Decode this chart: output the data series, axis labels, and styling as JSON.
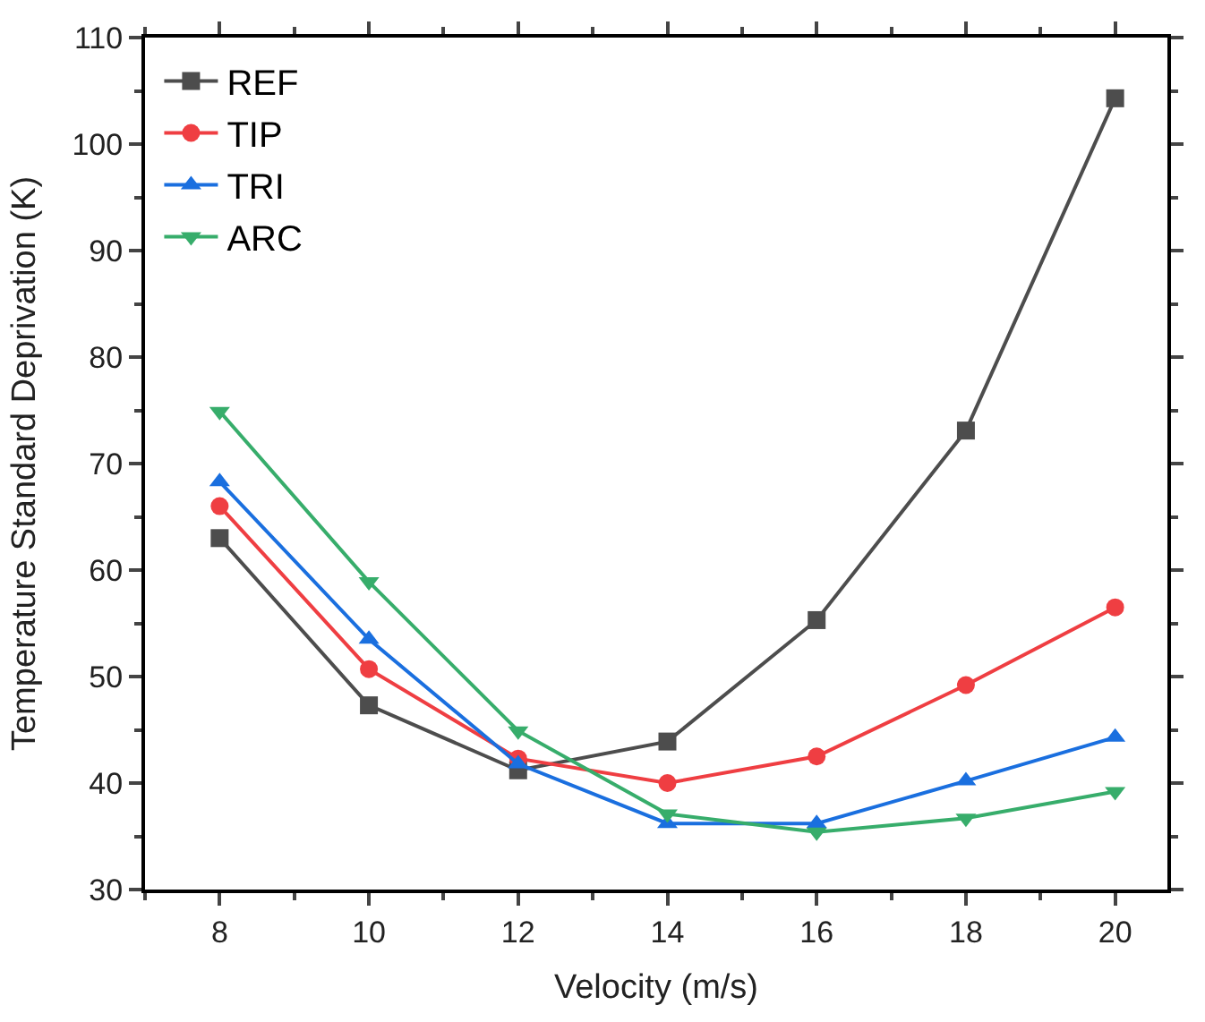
{
  "chart_data": {
    "type": "line",
    "xlabel": "Velocity (m/s)",
    "ylabel": "Temperature Standard Deprivation (K)",
    "x": [
      8,
      10,
      12,
      14,
      16,
      18,
      20
    ],
    "series": [
      {
        "name": "REF",
        "color": "#4d4d4d",
        "marker": "square",
        "values": [
          63.0,
          47.3,
          41.2,
          43.9,
          55.3,
          73.1,
          104.3
        ]
      },
      {
        "name": "TIP",
        "color": "#ef3e42",
        "marker": "circle",
        "values": [
          66.0,
          50.7,
          42.3,
          40.0,
          42.5,
          49.2,
          56.5
        ]
      },
      {
        "name": "TRI",
        "color": "#1a6fdf",
        "marker": "triangle",
        "values": [
          68.3,
          53.5,
          41.8,
          36.2,
          36.2,
          40.2,
          44.3
        ]
      },
      {
        "name": "ARC",
        "color": "#37ad6b",
        "marker": "triangle-down",
        "values": [
          74.9,
          58.9,
          44.9,
          37.1,
          35.4,
          36.7,
          39.2
        ]
      }
    ],
    "xlim": [
      7,
      20.7
    ],
    "xticks": [
      8,
      10,
      12,
      14,
      16,
      18,
      20
    ],
    "ylim": [
      30,
      110
    ],
    "yticks": [
      30,
      40,
      50,
      60,
      70,
      80,
      90,
      100,
      110
    ],
    "legend": "top left",
    "line_style": "solid"
  }
}
